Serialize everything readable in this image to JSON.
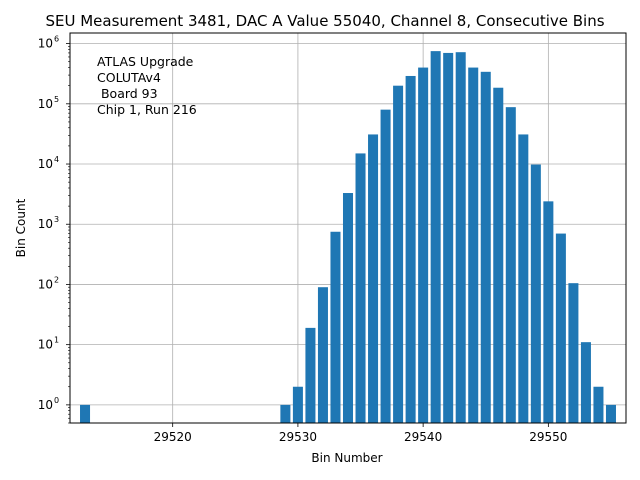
{
  "chart_data": {
    "type": "bar",
    "title": "SEU Measurement 3481, DAC A Value 55040, Channel 8, Consecutive Bins",
    "xlabel": "Bin Number",
    "ylabel": "Bin Count",
    "yscale": "log",
    "xlim": [
      29511.8,
      29556.2
    ],
    "ylim": [
      0.5,
      1500000
    ],
    "grid": true,
    "color": "#1f77b4",
    "x_ticks": [
      29520,
      29530,
      29540,
      29550
    ],
    "x_tick_labels": [
      "29520",
      "29530",
      "29540",
      "29550"
    ],
    "y_ticks": [
      {
        "value": 1,
        "base": "10",
        "exp": "0"
      },
      {
        "value": 10,
        "base": "10",
        "exp": "1"
      },
      {
        "value": 100,
        "base": "10",
        "exp": "2"
      },
      {
        "value": 1000,
        "base": "10",
        "exp": "3"
      },
      {
        "value": 10000,
        "base": "10",
        "exp": "4"
      },
      {
        "value": 100000,
        "base": "10",
        "exp": "5"
      },
      {
        "value": 1000000,
        "base": "10",
        "exp": "6"
      }
    ],
    "annotation": [
      "ATLAS Upgrade",
      "COLUTAv4",
      " Board 93",
      "Chip 1, Run 216"
    ],
    "x": [
      29513,
      29529,
      29530,
      29531,
      29532,
      29533,
      29534,
      29535,
      29536,
      29537,
      29538,
      29539,
      29540,
      29541,
      29542,
      29543,
      29544,
      29545,
      29546,
      29547,
      29548,
      29549,
      29550,
      29551,
      29552,
      29553,
      29554,
      29555
    ],
    "values": [
      1,
      1,
      2,
      19,
      90,
      750,
      3300,
      15000,
      31000,
      80000,
      200000,
      290000,
      400000,
      750000,
      700000,
      720000,
      400000,
      340000,
      185000,
      88000,
      31000,
      9800,
      2400,
      700,
      105,
      11,
      2,
      1
    ]
  }
}
